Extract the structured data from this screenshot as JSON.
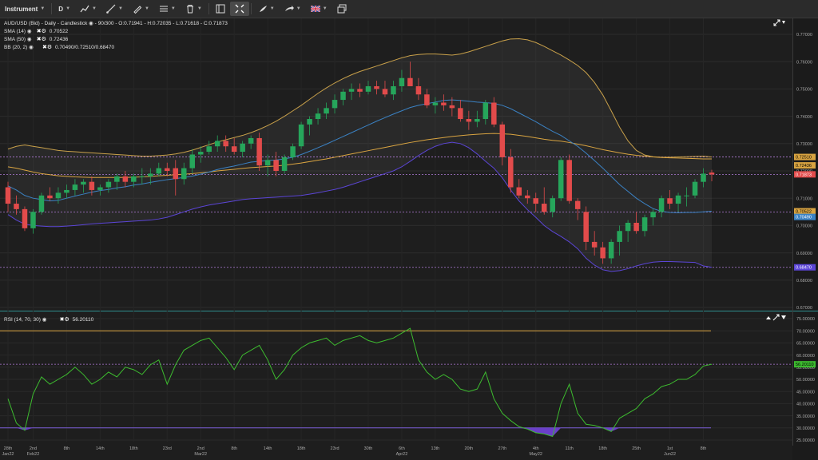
{
  "toolbar": {
    "instrument_label": "Instrument",
    "timeframe_label": "D",
    "icons": [
      "chart-type-icon",
      "draw-line-icon",
      "pencil-icon",
      "indicators-icon",
      "trash-icon",
      "layout-icon",
      "crosshair-icon",
      "share-icon",
      "brush-icon",
      "flag-uk-icon",
      "window-icon"
    ]
  },
  "colors": {
    "background": "#1e1e1e",
    "up": "#26a65b",
    "down": "#e24b4b",
    "sma14": "#3b82c4",
    "sma50": "#d9a441",
    "bb": "#c8a04a",
    "bb_lower": "#5b45d6",
    "rsi": "#3dbb2f",
    "rsi_upper": "#d9a441",
    "rsi_lower": "#7b5cd6",
    "dotted": "#b07bd8"
  },
  "chart_data": {
    "type": "candlestick",
    "title": "AUD/USD (Bid) - Daily - Candlestick",
    "ohlc_label": "90/300 - O:0.71941 - H:0.72035 - L:0.71618 - C:0.71873",
    "legend": [
      {
        "name": "SMA (14)",
        "value": "0.70522"
      },
      {
        "name": "SMA (50)",
        "value": "0.72436"
      },
      {
        "name": "BB (20, 2)",
        "value": "0.70490/0.72510/0.68470"
      }
    ],
    "rsi_legend": {
      "name": "RSI (14, 70, 30)",
      "value": "56.20110"
    },
    "price_axis": {
      "min": 0.67,
      "max": 0.77,
      "ticks": [
        "0.77000",
        "0.76000",
        "0.75000",
        "0.74000",
        "0.73000",
        "0.72000",
        "0.71000",
        "0.70000",
        "0.69000",
        "0.68000",
        "0.67000"
      ]
    },
    "rsi_axis": {
      "min": 25,
      "max": 75,
      "ticks": [
        "75.00000",
        "70.00000",
        "65.00000",
        "60.00000",
        "55.00000",
        "50.00000",
        "45.00000",
        "40.00000",
        "35.00000",
        "30.00000",
        "25.00000"
      ],
      "overbought": 70,
      "oversold": 30
    },
    "x_labels": [
      {
        "label": "28th",
        "sub": "Jan22",
        "i": 0
      },
      {
        "label": "2nd",
        "sub": "Feb22",
        "i": 3
      },
      {
        "label": "8th",
        "sub": "",
        "i": 7
      },
      {
        "label": "14th",
        "sub": "",
        "i": 11
      },
      {
        "label": "18th",
        "sub": "",
        "i": 15
      },
      {
        "label": "23rd",
        "sub": "",
        "i": 19
      },
      {
        "label": "2nd",
        "sub": "Mar22",
        "i": 23
      },
      {
        "label": "8th",
        "sub": "",
        "i": 27
      },
      {
        "label": "14th",
        "sub": "",
        "i": 31
      },
      {
        "label": "18th",
        "sub": "",
        "i": 35
      },
      {
        "label": "23rd",
        "sub": "",
        "i": 39
      },
      {
        "label": "30th",
        "sub": "",
        "i": 43
      },
      {
        "label": "6th",
        "sub": "Apr22",
        "i": 47
      },
      {
        "label": "13th",
        "sub": "",
        "i": 51
      },
      {
        "label": "20th",
        "sub": "",
        "i": 55
      },
      {
        "label": "27th",
        "sub": "",
        "i": 59
      },
      {
        "label": "4th",
        "sub": "May22",
        "i": 63
      },
      {
        "label": "11th",
        "sub": "",
        "i": 67
      },
      {
        "label": "18th",
        "sub": "",
        "i": 71
      },
      {
        "label": "25th",
        "sub": "",
        "i": 75
      },
      {
        "label": "1st",
        "sub": "Jun22",
        "i": 79
      },
      {
        "label": "8th",
        "sub": "",
        "i": 83
      }
    ],
    "price_badges": [
      {
        "value": "0.72510",
        "color": "#d9a441",
        "text": "#000"
      },
      {
        "value": "0.72436",
        "color": "#d9a441",
        "text": "#000"
      },
      {
        "value": "0.71873",
        "color": "#e24b4b",
        "text": "#fff"
      },
      {
        "value": "0.70522",
        "color": "#d9a441",
        "text": "#000"
      },
      {
        "value": "0.70490",
        "color": "#3b82c4",
        "text": "#fff"
      },
      {
        "value": "0.68470",
        "color": "#5b45d6",
        "text": "#fff"
      }
    ],
    "rsi_badge": {
      "value": "56.20110",
      "color": "#3dbb2f"
    },
    "hlines": [
      0.7251,
      0.71873,
      0.7049,
      0.6847
    ],
    "candles": [
      [
        0.714,
        0.716,
        0.705,
        0.708
      ],
      [
        0.708,
        0.711,
        0.704,
        0.706
      ],
      [
        0.706,
        0.707,
        0.698,
        0.699
      ],
      [
        0.699,
        0.706,
        0.697,
        0.705
      ],
      [
        0.705,
        0.712,
        0.704,
        0.711
      ],
      [
        0.711,
        0.714,
        0.709,
        0.71
      ],
      [
        0.71,
        0.714,
        0.708,
        0.712
      ],
      [
        0.712,
        0.715,
        0.71,
        0.713
      ],
      [
        0.713,
        0.717,
        0.711,
        0.715
      ],
      [
        0.715,
        0.717,
        0.712,
        0.716
      ],
      [
        0.716,
        0.718,
        0.711,
        0.713
      ],
      [
        0.713,
        0.715,
        0.711,
        0.714
      ],
      [
        0.714,
        0.717,
        0.712,
        0.716
      ],
      [
        0.716,
        0.719,
        0.713,
        0.718
      ],
      [
        0.718,
        0.72,
        0.714,
        0.716
      ],
      [
        0.716,
        0.719,
        0.714,
        0.718
      ],
      [
        0.718,
        0.721,
        0.715,
        0.718
      ],
      [
        0.718,
        0.721,
        0.715,
        0.719
      ],
      [
        0.719,
        0.723,
        0.718,
        0.721
      ],
      [
        0.721,
        0.723,
        0.718,
        0.72
      ],
      [
        0.721,
        0.724,
        0.711,
        0.717
      ],
      [
        0.717,
        0.723,
        0.715,
        0.721
      ],
      [
        0.721,
        0.728,
        0.719,
        0.726
      ],
      [
        0.726,
        0.729,
        0.723,
        0.727
      ],
      [
        0.727,
        0.731,
        0.726,
        0.729
      ],
      [
        0.729,
        0.733,
        0.727,
        0.731
      ],
      [
        0.731,
        0.733,
        0.727,
        0.729
      ],
      [
        0.729,
        0.732,
        0.726,
        0.727
      ],
      [
        0.727,
        0.731,
        0.725,
        0.73
      ],
      [
        0.73,
        0.733,
        0.728,
        0.732
      ],
      [
        0.732,
        0.734,
        0.72,
        0.722
      ],
      [
        0.722,
        0.726,
        0.718,
        0.724
      ],
      [
        0.724,
        0.727,
        0.718,
        0.72
      ],
      [
        0.72,
        0.726,
        0.719,
        0.725
      ],
      [
        0.725,
        0.73,
        0.724,
        0.729
      ],
      [
        0.729,
        0.738,
        0.728,
        0.737
      ],
      [
        0.737,
        0.74,
        0.733,
        0.739
      ],
      [
        0.739,
        0.743,
        0.737,
        0.741
      ],
      [
        0.741,
        0.745,
        0.739,
        0.743
      ],
      [
        0.743,
        0.748,
        0.741,
        0.746
      ],
      [
        0.746,
        0.75,
        0.744,
        0.749
      ],
      [
        0.749,
        0.752,
        0.746,
        0.75
      ],
      [
        0.75,
        0.752,
        0.747,
        0.749
      ],
      [
        0.749,
        0.753,
        0.748,
        0.751
      ],
      [
        0.751,
        0.753,
        0.748,
        0.75
      ],
      [
        0.75,
        0.753,
        0.747,
        0.748
      ],
      [
        0.748,
        0.753,
        0.746,
        0.751
      ],
      [
        0.751,
        0.757,
        0.749,
        0.754
      ],
      [
        0.754,
        0.76,
        0.751,
        0.751
      ],
      [
        0.751,
        0.754,
        0.746,
        0.748
      ],
      [
        0.748,
        0.75,
        0.743,
        0.744
      ],
      [
        0.744,
        0.747,
        0.741,
        0.745
      ],
      [
        0.745,
        0.748,
        0.742,
        0.744
      ],
      [
        0.744,
        0.747,
        0.74,
        0.743
      ],
      [
        0.743,
        0.746,
        0.738,
        0.739
      ],
      [
        0.739,
        0.742,
        0.735,
        0.738
      ],
      [
        0.738,
        0.742,
        0.736,
        0.739
      ],
      [
        0.739,
        0.746,
        0.737,
        0.745
      ],
      [
        0.745,
        0.747,
        0.736,
        0.737
      ],
      [
        0.737,
        0.738,
        0.722,
        0.725
      ],
      [
        0.725,
        0.728,
        0.712,
        0.714
      ],
      [
        0.714,
        0.717,
        0.71,
        0.711
      ],
      [
        0.711,
        0.713,
        0.708,
        0.71
      ],
      [
        0.71,
        0.712,
        0.705,
        0.708
      ],
      [
        0.708,
        0.714,
        0.704,
        0.705
      ],
      [
        0.705,
        0.711,
        0.703,
        0.71
      ],
      [
        0.71,
        0.725,
        0.709,
        0.724
      ],
      [
        0.724,
        0.726,
        0.708,
        0.709
      ],
      [
        0.709,
        0.71,
        0.702,
        0.706
      ],
      [
        0.705,
        0.707,
        0.691,
        0.694
      ],
      [
        0.694,
        0.698,
        0.689,
        0.692
      ],
      [
        0.692,
        0.694,
        0.686,
        0.688
      ],
      [
        0.688,
        0.695,
        0.686,
        0.694
      ],
      [
        0.694,
        0.7,
        0.689,
        0.698
      ],
      [
        0.698,
        0.702,
        0.694,
        0.701
      ],
      [
        0.701,
        0.705,
        0.697,
        0.698
      ],
      [
        0.698,
        0.704,
        0.696,
        0.703
      ],
      [
        0.703,
        0.706,
        0.7,
        0.705
      ],
      [
        0.705,
        0.711,
        0.703,
        0.71
      ],
      [
        0.71,
        0.713,
        0.706,
        0.708
      ],
      [
        0.708,
        0.712,
        0.705,
        0.711
      ],
      [
        0.711,
        0.714,
        0.707,
        0.711
      ],
      [
        0.711,
        0.717,
        0.71,
        0.716
      ],
      [
        0.716,
        0.721,
        0.714,
        0.719
      ],
      [
        0.7194,
        0.7204,
        0.7162,
        0.7187
      ]
    ],
    "sma14": [
      0.7145,
      0.713,
      0.711,
      0.71,
      0.7095,
      0.709,
      0.7092,
      0.71,
      0.7108,
      0.7115,
      0.7122,
      0.7128,
      0.7132,
      0.7138,
      0.7142,
      0.7148,
      0.7152,
      0.7158,
      0.7163,
      0.7168,
      0.7172,
      0.7176,
      0.7181,
      0.7188,
      0.7196,
      0.7205,
      0.7212,
      0.7218,
      0.7225,
      0.7232,
      0.7235,
      0.7238,
      0.724,
      0.7244,
      0.725,
      0.726,
      0.7272,
      0.7285,
      0.7298,
      0.7312,
      0.7326,
      0.734,
      0.7354,
      0.7368,
      0.7382,
      0.7395,
      0.7408,
      0.742,
      0.7432,
      0.744,
      0.7446,
      0.7452,
      0.7458,
      0.746,
      0.7458,
      0.7455,
      0.7452,
      0.745,
      0.7447,
      0.744,
      0.7428,
      0.7412,
      0.7396,
      0.738,
      0.7362,
      0.7345,
      0.733,
      0.731,
      0.729,
      0.7265,
      0.7238,
      0.721,
      0.718,
      0.715,
      0.7125,
      0.71,
      0.708,
      0.7062,
      0.7052,
      0.7048,
      0.7047,
      0.7048,
      0.7048,
      0.705,
      0.7052
    ],
    "sma50": [
      0.7215,
      0.721,
      0.7203,
      0.7196,
      0.719,
      0.7186,
      0.7182,
      0.718,
      0.7178,
      0.7177,
      0.7176,
      0.7176,
      0.7176,
      0.7176,
      0.7176,
      0.7177,
      0.7178,
      0.718,
      0.7182,
      0.7184,
      0.7186,
      0.7188,
      0.719,
      0.7193,
      0.7196,
      0.72,
      0.7203,
      0.7206,
      0.7209,
      0.7212,
      0.7214,
      0.7216,
      0.7218,
      0.7221,
      0.7225,
      0.7229,
      0.7234,
      0.7239,
      0.7244,
      0.725,
      0.7256,
      0.7262,
      0.7268,
      0.7274,
      0.728,
      0.7286,
      0.7292,
      0.7298,
      0.7304,
      0.7309,
      0.7314,
      0.7318,
      0.7322,
      0.7326,
      0.7329,
      0.7332,
      0.7334,
      0.7336,
      0.7337,
      0.7336,
      0.7334,
      0.733,
      0.7326,
      0.7321,
      0.7316,
      0.7312,
      0.7309,
      0.7304,
      0.7298,
      0.7292,
      0.7285,
      0.7278,
      0.7272,
      0.7266,
      0.7261,
      0.7257,
      0.7254,
      0.7251,
      0.7249,
      0.7248,
      0.7247,
      0.7246,
      0.7245,
      0.7244,
      0.7244
    ],
    "bb_upper": [
      0.728,
      0.729,
      0.7295,
      0.729,
      0.7285,
      0.728,
      0.7275,
      0.7272,
      0.727,
      0.7268,
      0.7266,
      0.7264,
      0.7262,
      0.726,
      0.7258,
      0.7256,
      0.7254,
      0.7254,
      0.7256,
      0.7258,
      0.7262,
      0.7268,
      0.7276,
      0.7286,
      0.7296,
      0.7306,
      0.7314,
      0.7322,
      0.733,
      0.734,
      0.7352,
      0.7366,
      0.7382,
      0.74,
      0.742,
      0.744,
      0.7462,
      0.7484,
      0.7504,
      0.7522,
      0.7538,
      0.7552,
      0.7564,
      0.7574,
      0.7584,
      0.7594,
      0.7604,
      0.7614,
      0.7622,
      0.7626,
      0.7628,
      0.7628,
      0.7626,
      0.7624,
      0.7628,
      0.7636,
      0.7646,
      0.7656,
      0.7666,
      0.7676,
      0.7683,
      0.7684,
      0.768,
      0.767,
      0.7656,
      0.764,
      0.7624,
      0.7606,
      0.7586,
      0.756,
      0.7524,
      0.7478,
      0.742,
      0.736,
      0.731,
      0.7275,
      0.7258,
      0.7252,
      0.725,
      0.725,
      0.7251,
      0.7252,
      0.7253,
      0.7254,
      0.7251
    ],
    "bb_lower": [
      0.704,
      0.702,
      0.7005,
      0.7,
      0.6998,
      0.6996,
      0.6996,
      0.6998,
      0.7,
      0.7003,
      0.7006,
      0.7008,
      0.701,
      0.7012,
      0.7014,
      0.7016,
      0.7018,
      0.702,
      0.7024,
      0.703,
      0.704,
      0.705,
      0.706,
      0.7068,
      0.7075,
      0.708,
      0.7085,
      0.709,
      0.7095,
      0.7098,
      0.71,
      0.7102,
      0.7104,
      0.7106,
      0.7108,
      0.711,
      0.7115,
      0.712,
      0.7126,
      0.7132,
      0.714,
      0.715,
      0.716,
      0.717,
      0.718,
      0.719,
      0.72,
      0.7215,
      0.7235,
      0.7256,
      0.7275,
      0.729,
      0.73,
      0.7305,
      0.73,
      0.7285,
      0.7262,
      0.7235,
      0.721,
      0.7175,
      0.713,
      0.709,
      0.7058,
      0.703,
      0.7,
      0.6978,
      0.696,
      0.694,
      0.6915,
      0.688,
      0.6855,
      0.6838,
      0.6832,
      0.6835,
      0.6842,
      0.6852,
      0.686,
      0.6866,
      0.6868,
      0.6868,
      0.6867,
      0.6866,
      0.6865,
      0.6852,
      0.6847
    ],
    "rsi": [
      42.0,
      32.0,
      29.0,
      44.0,
      51.0,
      48.0,
      50.0,
      52.0,
      55.0,
      52.0,
      48.0,
      50.0,
      53.0,
      51.0,
      55.0,
      54.0,
      52.0,
      56.0,
      58.0,
      48.0,
      56.0,
      62.0,
      64.0,
      66.0,
      67.0,
      63.0,
      59.0,
      54.0,
      60.0,
      62.0,
      64.0,
      58.0,
      50.0,
      54.0,
      60.0,
      63.0,
      65.0,
      66.0,
      67.0,
      64.0,
      66.0,
      67.0,
      68.0,
      66.0,
      65.0,
      66.0,
      67.0,
      69.0,
      71.0,
      58.0,
      53.0,
      50.0,
      52.0,
      50.0,
      46.0,
      45.0,
      46.0,
      53.0,
      42.0,
      36.0,
      33.0,
      30.5,
      29.5,
      28.0,
      27.5,
      26.5,
      40.0,
      48.0,
      36.0,
      31.5,
      31.0,
      30.0,
      28.5,
      34.0,
      36.0,
      38.0,
      42.0,
      44.0,
      47.0,
      48.0,
      50.0,
      50.0,
      52.0,
      55.5,
      56.2
    ],
    "dotted_rsi": 56.2
  }
}
